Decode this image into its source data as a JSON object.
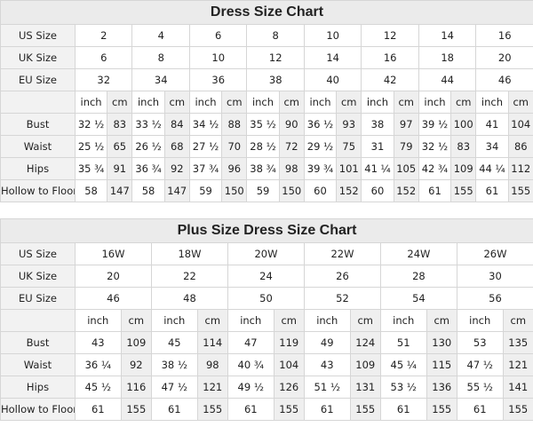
{
  "tables": [
    {
      "title": "Dress Size Chart",
      "size_rows": [
        {
          "label": "US Size",
          "values": [
            "2",
            "4",
            "6",
            "8",
            "10",
            "12",
            "14",
            "16"
          ]
        },
        {
          "label": "UK Size",
          "values": [
            "6",
            "8",
            "10",
            "12",
            "14",
            "16",
            "18",
            "20"
          ]
        },
        {
          "label": "EU Size",
          "values": [
            "32",
            "34",
            "36",
            "38",
            "40",
            "42",
            "44",
            "46"
          ]
        }
      ],
      "units": [
        "inch",
        "cm"
      ],
      "measure_rows": [
        {
          "label": "Bust",
          "values": [
            "32 ½",
            "83",
            "33 ½",
            "84",
            "34 ½",
            "88",
            "35 ½",
            "90",
            "36 ½",
            "93",
            "38",
            "97",
            "39 ½",
            "100",
            "41",
            "104"
          ]
        },
        {
          "label": "Waist",
          "values": [
            "25 ½",
            "65",
            "26 ½",
            "68",
            "27 ½",
            "70",
            "28 ½",
            "72",
            "29 ½",
            "75",
            "31",
            "79",
            "32 ½",
            "83",
            "34",
            "86"
          ]
        },
        {
          "label": "Hips",
          "values": [
            "35 ¾",
            "91",
            "36 ¾",
            "92",
            "37 ¾",
            "96",
            "38 ¾",
            "98",
            "39 ¾",
            "101",
            "41 ¼",
            "105",
            "42 ¾",
            "109",
            "44 ¼",
            "112"
          ]
        },
        {
          "label": "Hollow to Floor",
          "values": [
            "58",
            "147",
            "58",
            "147",
            "59",
            "150",
            "59",
            "150",
            "60",
            "152",
            "60",
            "152",
            "61",
            "155",
            "61",
            "155"
          ]
        }
      ]
    },
    {
      "title": "Plus Size Dress Size Chart",
      "size_rows": [
        {
          "label": "US Size",
          "values": [
            "16W",
            "18W",
            "20W",
            "22W",
            "24W",
            "26W"
          ]
        },
        {
          "label": "UK Size",
          "values": [
            "20",
            "22",
            "24",
            "26",
            "28",
            "30"
          ]
        },
        {
          "label": "EU Size",
          "values": [
            "46",
            "48",
            "50",
            "52",
            "54",
            "56"
          ]
        }
      ],
      "units": [
        "inch",
        "cm"
      ],
      "measure_rows": [
        {
          "label": "Bust",
          "values": [
            "43",
            "109",
            "45",
            "114",
            "47",
            "119",
            "49",
            "124",
            "51",
            "130",
            "53",
            "135"
          ]
        },
        {
          "label": "Waist",
          "values": [
            "36 ¼",
            "92",
            "38 ½",
            "98",
            "40 ¾",
            "104",
            "43",
            "109",
            "45 ¼",
            "115",
            "47 ½",
            "121"
          ]
        },
        {
          "label": "Hips",
          "values": [
            "45 ½",
            "116",
            "47 ½",
            "121",
            "49 ½",
            "126",
            "51 ½",
            "131",
            "53 ½",
            "136",
            "55 ½",
            "141"
          ]
        },
        {
          "label": "Hollow to Floor",
          "values": [
            "61",
            "155",
            "61",
            "155",
            "61",
            "155",
            "61",
            "155",
            "61",
            "155",
            "61",
            "155"
          ]
        }
      ]
    }
  ]
}
